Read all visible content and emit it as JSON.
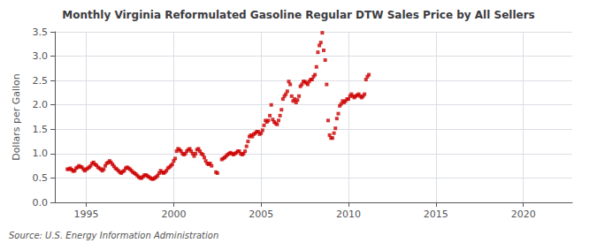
{
  "chart_data": {
    "type": "scatter",
    "title": "Monthly Virginia Reformulated Gasoline Regular DTW Sales Price by All Sellers",
    "ylabel": "Dollars per Gallon",
    "annotations": [
      "Source: U.S. Energy Information Administration"
    ],
    "color": "#cc0000",
    "marker": "square",
    "grid": true,
    "xlim": [
      1993.2,
      2022.8
    ],
    "xticks": [
      1995,
      2000,
      2005,
      2010,
      2015,
      2020
    ],
    "ylim": [
      0.0,
      3.5
    ],
    "yticks": [
      {
        "value": 0.0,
        "label": "0.0"
      },
      0.5,
      {
        "value": 1.0,
        "label": "1.0"
      },
      1.5,
      {
        "value": 2.0,
        "label": "2.0"
      },
      2.5,
      {
        "value": 3.0,
        "label": "3.0"
      },
      3.5
    ],
    "x": [
      1993.917,
      1994.0,
      1994.083,
      1994.167,
      1994.25,
      1994.333,
      1994.417,
      1994.5,
      1994.583,
      1994.667,
      1994.75,
      1994.833,
      1994.917,
      1995.0,
      1995.083,
      1995.167,
      1995.25,
      1995.333,
      1995.417,
      1995.5,
      1995.583,
      1995.667,
      1995.75,
      1995.833,
      1995.917,
      1996.0,
      1996.083,
      1996.167,
      1996.25,
      1996.333,
      1996.417,
      1996.5,
      1996.583,
      1996.667,
      1996.75,
      1996.833,
      1996.917,
      1997.0,
      1997.083,
      1997.167,
      1997.25,
      1997.333,
      1997.417,
      1997.5,
      1997.583,
      1997.667,
      1997.75,
      1997.833,
      1997.917,
      1998.0,
      1998.083,
      1998.167,
      1998.25,
      1998.333,
      1998.417,
      1998.5,
      1998.583,
      1998.667,
      1998.75,
      1998.833,
      1998.917,
      1999.0,
      1999.083,
      1999.167,
      1999.25,
      1999.333,
      1999.417,
      1999.5,
      1999.583,
      1999.667,
      1999.75,
      1999.833,
      1999.917,
      2000.0,
      2000.083,
      2000.167,
      2000.25,
      2000.333,
      2000.417,
      2000.5,
      2000.583,
      2000.667,
      2000.75,
      2000.833,
      2000.917,
      2001.0,
      2001.083,
      2001.167,
      2001.25,
      2001.333,
      2001.417,
      2001.5,
      2001.583,
      2001.667,
      2001.75,
      2001.833,
      2001.917,
      2002.0,
      2002.083,
      2002.167,
      2002.417,
      2002.5,
      2002.75,
      2002.833,
      2002.917,
      2003.0,
      2003.083,
      2003.167,
      2003.25,
      2003.333,
      2003.417,
      2003.5,
      2003.583,
      2003.667,
      2003.75,
      2003.833,
      2003.917,
      2004.0,
      2004.083,
      2004.167,
      2004.25,
      2004.333,
      2004.417,
      2004.5,
      2004.583,
      2004.667,
      2004.75,
      2004.833,
      2004.917,
      2005.0,
      2005.083,
      2005.167,
      2005.25,
      2005.333,
      2005.417,
      2005.5,
      2005.583,
      2005.667,
      2005.75,
      2005.833,
      2005.917,
      2006.0,
      2006.083,
      2006.167,
      2006.25,
      2006.333,
      2006.417,
      2006.5,
      2006.583,
      2006.667,
      2006.75,
      2006.833,
      2006.917,
      2007.0,
      2007.083,
      2007.167,
      2007.25,
      2007.333,
      2007.417,
      2007.5,
      2007.583,
      2007.667,
      2007.75,
      2007.833,
      2007.917,
      2008.0,
      2008.083,
      2008.167,
      2008.25,
      2008.333,
      2008.417,
      2008.5,
      2008.583,
      2008.667,
      2008.75,
      2008.833,
      2008.917,
      2009.0,
      2009.083,
      2009.167,
      2009.25,
      2009.333,
      2009.417,
      2009.5,
      2009.583,
      2009.667,
      2009.75,
      2009.833,
      2009.917,
      2010.0,
      2010.083,
      2010.167,
      2010.25,
      2010.333,
      2010.417,
      2010.5,
      2010.583,
      2010.667,
      2010.75,
      2010.833,
      2010.917,
      2011.0,
      2011.083,
      2011.167
    ],
    "values": [
      0.68,
      0.68,
      0.7,
      0.67,
      0.64,
      0.65,
      0.7,
      0.72,
      0.75,
      0.73,
      0.72,
      0.68,
      0.65,
      0.68,
      0.7,
      0.72,
      0.75,
      0.8,
      0.82,
      0.78,
      0.76,
      0.72,
      0.7,
      0.68,
      0.65,
      0.68,
      0.75,
      0.8,
      0.82,
      0.85,
      0.82,
      0.78,
      0.74,
      0.7,
      0.68,
      0.65,
      0.62,
      0.6,
      0.63,
      0.65,
      0.7,
      0.72,
      0.7,
      0.68,
      0.65,
      0.62,
      0.6,
      0.58,
      0.55,
      0.52,
      0.5,
      0.5,
      0.53,
      0.56,
      0.56,
      0.54,
      0.52,
      0.5,
      0.48,
      0.48,
      0.5,
      0.52,
      0.55,
      0.6,
      0.65,
      0.62,
      0.6,
      0.62,
      0.65,
      0.7,
      0.72,
      0.75,
      0.78,
      0.85,
      0.9,
      1.05,
      1.1,
      1.08,
      1.05,
      1.0,
      0.98,
      1.0,
      1.05,
      1.08,
      1.1,
      1.05,
      1.0,
      0.95,
      1.0,
      1.08,
      1.1,
      1.05,
      1.0,
      0.98,
      0.92,
      0.85,
      0.8,
      0.78,
      0.8,
      0.75,
      0.62,
      0.6,
      0.88,
      0.9,
      0.92,
      0.95,
      0.98,
      1.0,
      1.02,
      1.0,
      0.98,
      1.0,
      1.02,
      1.05,
      1.05,
      1.0,
      0.98,
      1.0,
      1.05,
      1.15,
      1.25,
      1.35,
      1.38,
      1.35,
      1.4,
      1.42,
      1.45,
      1.45,
      1.4,
      1.42,
      1.48,
      1.58,
      1.68,
      1.65,
      1.68,
      1.78,
      2.0,
      1.7,
      1.65,
      1.62,
      1.6,
      1.68,
      1.78,
      1.9,
      2.12,
      2.18,
      2.22,
      2.28,
      2.48,
      2.42,
      2.18,
      2.08,
      2.12,
      2.05,
      2.1,
      2.18,
      2.38,
      2.42,
      2.48,
      2.48,
      2.45,
      2.42,
      2.48,
      2.52,
      2.52,
      2.58,
      2.62,
      2.78,
      3.08,
      3.22,
      3.28,
      3.48,
      3.12,
      2.92,
      2.42,
      1.68,
      1.38,
      1.32,
      1.32,
      1.42,
      1.52,
      1.72,
      1.82,
      1.98,
      2.02,
      2.08,
      2.05,
      2.08,
      2.12,
      2.12,
      2.18,
      2.22,
      2.18,
      2.15,
      2.18,
      2.2,
      2.22,
      2.18,
      2.15,
      2.18,
      2.22,
      2.52,
      2.58,
      2.62
    ]
  }
}
